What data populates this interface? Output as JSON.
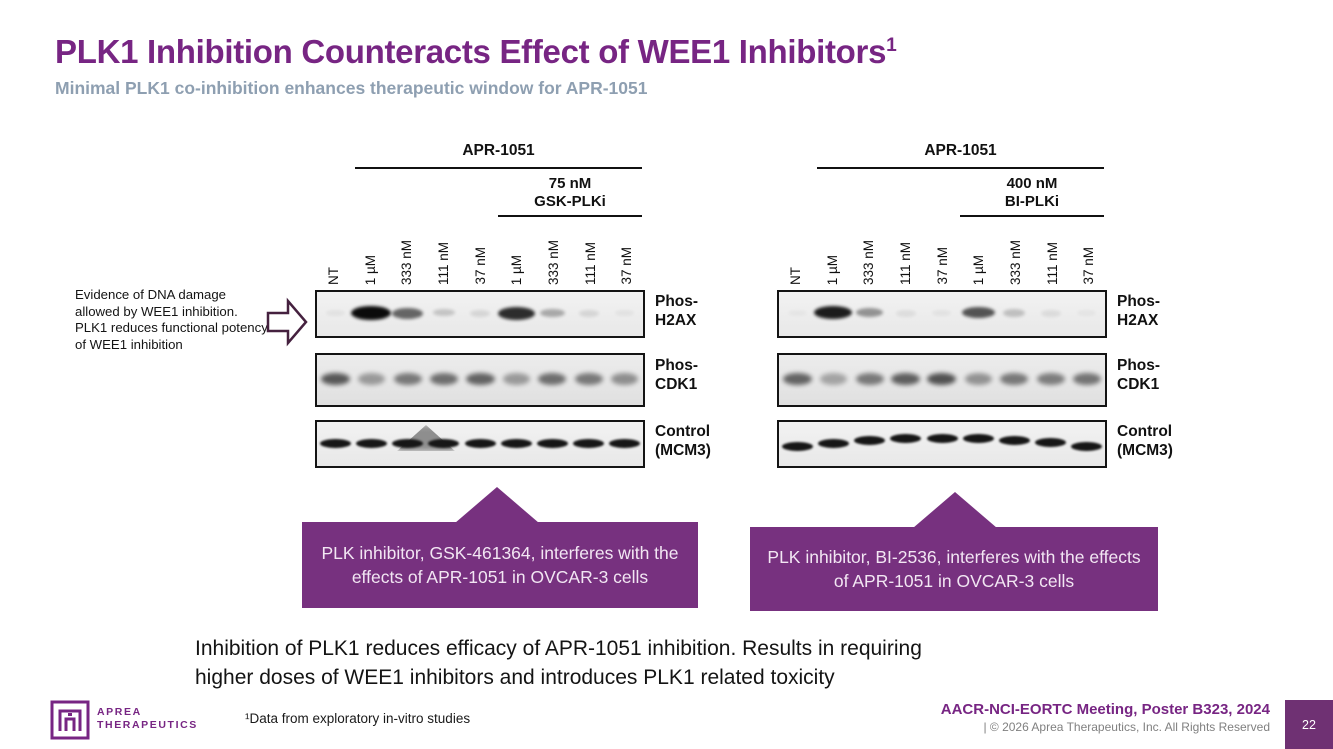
{
  "slide": {
    "title": "PLK1 Inhibition Counteracts Effect of WEE1 Inhibitors",
    "title_sup": "1",
    "subtitle": "Minimal PLK1 co-inhibition enhances therapeutic window for APR-1051",
    "conclusion_line1": "Inhibition of PLK1 reduces efficacy of APR-1051 inhibition. Results in requiring",
    "conclusion_line2": "higher doses of WEE1 inhibitors and introduces PLK1 related toxicity"
  },
  "annotation": {
    "text": "Evidence of DNA damage allowed by WEE1 inhibition. PLK1 reduces functional potency of WEE1 inhibition",
    "arrow_icon": "block-arrow-right"
  },
  "panels": [
    {
      "name": "GSK-PLKi panel",
      "drug_header": "APR-1051",
      "combo_line1": "75 nM",
      "combo_line2": "GSK-PLKi",
      "lanes": [
        "NT",
        "1 µM",
        "333 nM",
        "111 nM",
        "37 nM",
        "1 µM",
        "333 nM",
        "111 nM",
        "37 nM"
      ],
      "rows": [
        {
          "label_line1": "Phos-",
          "label_line2": "H2AX",
          "band_intensities": [
            0.05,
            1.0,
            0.6,
            0.18,
            0.1,
            0.85,
            0.3,
            0.1,
            0.05
          ]
        },
        {
          "label_line1": "Phos-",
          "label_line2": "CDK1",
          "band_intensities": [
            0.65,
            0.35,
            0.5,
            0.55,
            0.6,
            0.35,
            0.55,
            0.5,
            0.4
          ]
        },
        {
          "label_line1": "Control",
          "label_line2": "(MCM3)",
          "band_intensities": [
            0.95,
            0.95,
            0.95,
            0.95,
            0.95,
            0.95,
            0.95,
            0.95,
            0.95
          ],
          "smear_center_lane": 3
        }
      ],
      "callout_text": "PLK inhibitor, GSK-461364, interferes with the effects of APR-1051 in OVCAR-3 cells"
    },
    {
      "name": "BI-PLKi panel",
      "drug_header": "APR-1051",
      "combo_line1": "400 nM",
      "combo_line2": "BI-PLKi",
      "lanes": [
        "NT",
        "1 µM",
        "333 nM",
        "111 nM",
        "37 nM",
        "1 µM",
        "333 nM",
        "111 nM",
        "37 nM"
      ],
      "rows": [
        {
          "label_line1": "Phos-",
          "label_line2": "H2AX",
          "band_intensities": [
            0.03,
            0.92,
            0.4,
            0.07,
            0.05,
            0.68,
            0.2,
            0.08,
            0.04
          ]
        },
        {
          "label_line1": "Phos-",
          "label_line2": "CDK1",
          "band_intensities": [
            0.6,
            0.3,
            0.5,
            0.62,
            0.68,
            0.38,
            0.5,
            0.48,
            0.52
          ]
        },
        {
          "label_line1": "Control",
          "label_line2": "(MCM3)",
          "band_intensities": [
            0.95,
            0.95,
            0.95,
            0.95,
            0.95,
            0.95,
            0.95,
            0.95,
            0.95
          ],
          "arc": true
        }
      ],
      "callout_text": "PLK inhibitor, BI-2536, interferes with the effects of APR-1051 in OVCAR-3 cells"
    }
  ],
  "footer": {
    "logo_icon": "aprea-therapeutics-logo",
    "logo_line1": "APREA",
    "logo_line2": "THERAPEUTICS",
    "footnote": "¹Data from exploratory in-vitro studies",
    "meeting": "AACR-NCI-EORTC Meeting, Poster B323, 2024",
    "copyright": "| © 2026 Aprea Therapeutics, Inc. All Rights Reserved",
    "page_number": "22"
  },
  "colors": {
    "brand_purple": "#772583",
    "subtitle_gray": "#8E9FB1",
    "callout_purple": "#77317F",
    "callout_text": "#F2E6F3",
    "page_box_purple": "#6F3173",
    "arrow_outline": "#45213F",
    "copyright_gray": "#808080",
    "blot_border": "#141414"
  }
}
